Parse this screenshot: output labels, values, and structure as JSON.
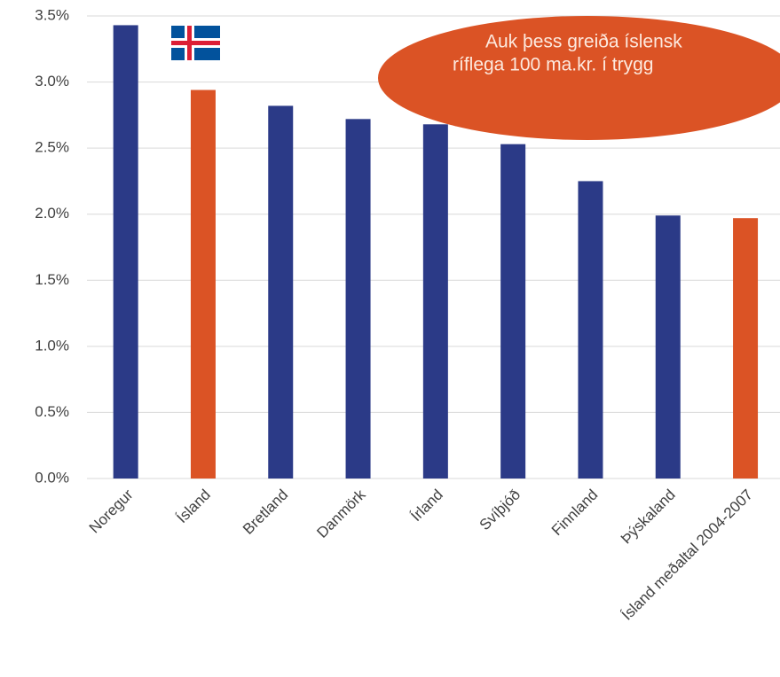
{
  "chart_data": {
    "type": "bar",
    "categories": [
      "Noregur",
      "Ísland",
      "Bretland",
      "Danmörk",
      "Írland",
      "Svíþjóð",
      "Finnland",
      "Þýskaland",
      "Ísland meðaltal 2004-2007"
    ],
    "values": [
      3.43,
      2.94,
      2.82,
      2.72,
      2.68,
      2.53,
      2.25,
      1.99,
      1.97
    ],
    "colors": [
      "#2b3a87",
      "#db5325",
      "#2b3a87",
      "#2b3a87",
      "#2b3a87",
      "#2b3a87",
      "#2b3a87",
      "#2b3a87",
      "#db5325"
    ],
    "ylim": [
      0,
      3.5
    ],
    "yticks": [
      {
        "value": 0,
        "label": "0.0%"
      },
      {
        "value": 0.5,
        "label": "0.5%"
      },
      {
        "value": 1,
        "label": "1.0%"
      },
      {
        "value": 1.5,
        "label": "1.5%"
      },
      {
        "value": 2,
        "label": "2.0%"
      },
      {
        "value": 2.5,
        "label": "2.5%"
      },
      {
        "value": 3,
        "label": "3.0%"
      },
      {
        "value": 3.5,
        "label": "3.5%"
      }
    ],
    "grid": true,
    "annotation": [
      "Auk þess greiða íslensk",
      "ríflega 100 ma.kr. í trygg"
    ]
  }
}
